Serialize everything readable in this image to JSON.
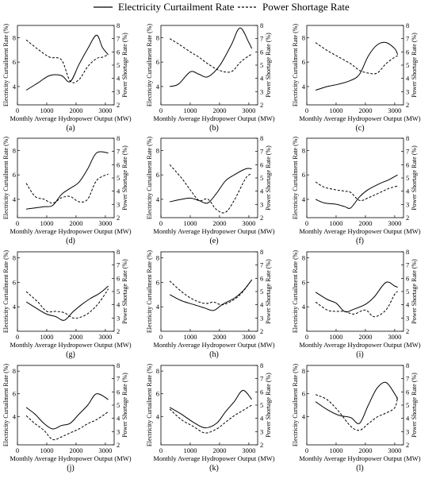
{
  "legend": {
    "series": [
      {
        "name": "Electricity Curtailment Rate",
        "style": "solid"
      },
      {
        "name": "Power Shortage Rate",
        "style": "dashed"
      }
    ]
  },
  "shared_axes": {
    "xlabel": "Monthly Average Hydropower Output (MW)",
    "ylabel_left": "Electricity Curtailment Rate (%)",
    "ylabel_right": "Power Shortage Rate (%)",
    "x_ticks": [
      0,
      1000,
      2000,
      3000
    ],
    "xlim": [
      0,
      3300
    ],
    "line_color": "#000000"
  },
  "chart_data": [
    {
      "type": "line",
      "panel_label": "(a)",
      "left_ticks": [
        4,
        6,
        8
      ],
      "left_ylim": [
        2.5,
        9.0
      ],
      "right_ticks": [
        2,
        3,
        4,
        5,
        6,
        7,
        8
      ],
      "right_ylim": [
        2.0,
        8.0
      ],
      "x": [
        300,
        700,
        1100,
        1500,
        1800,
        2100,
        2400,
        2700,
        2900,
        3100
      ],
      "series": [
        {
          "name": "Electricity Curtailment Rate",
          "values": [
            3.7,
            4.3,
            4.9,
            4.9,
            4.4,
            5.8,
            7.1,
            8.2,
            7.2,
            6.6
          ]
        },
        {
          "name": "Power Shortage Rate",
          "values": [
            6.9,
            6.2,
            5.6,
            5.4,
            3.8,
            3.9,
            4.9,
            5.5,
            5.6,
            5.8
          ]
        }
      ]
    },
    {
      "type": "line",
      "panel_label": "(b)",
      "left_ticks": [
        4,
        6,
        8
      ],
      "left_ylim": [
        2.5,
        9.0
      ],
      "right_ticks": [
        2,
        3,
        4,
        5,
        6,
        7,
        8
      ],
      "right_ylim": [
        2.0,
        8.0
      ],
      "x": [
        300,
        600,
        1000,
        1300,
        1600,
        2000,
        2400,
        2700,
        3000,
        3100
      ],
      "series": [
        {
          "name": "Electricity Curtailment Rate",
          "values": [
            4.0,
            4.2,
            5.2,
            5.0,
            4.8,
            5.7,
            7.4,
            8.8,
            7.6,
            7.1
          ]
        },
        {
          "name": "Power Shortage Rate",
          "values": [
            7.0,
            6.6,
            6.0,
            5.6,
            5.1,
            4.6,
            4.5,
            5.2,
            5.7,
            5.8
          ]
        }
      ]
    },
    {
      "type": "line",
      "panel_label": "(c)",
      "left_ticks": [
        4,
        6,
        8
      ],
      "left_ylim": [
        2.5,
        9.0
      ],
      "right_ticks": [
        2,
        3,
        4,
        5,
        6,
        7,
        8
      ],
      "right_ylim": [
        2.0,
        8.0
      ],
      "x": [
        300,
        700,
        1100,
        1500,
        1800,
        2100,
        2400,
        2700,
        3000,
        3100
      ],
      "series": [
        {
          "name": "Electricity Curtailment Rate",
          "values": [
            3.7,
            4.0,
            4.2,
            4.5,
            5.0,
            6.5,
            7.4,
            7.6,
            7.1,
            6.6
          ]
        },
        {
          "name": "Power Shortage Rate",
          "values": [
            6.7,
            6.1,
            5.6,
            5.1,
            4.6,
            4.4,
            4.4,
            5.1,
            5.6,
            5.7
          ]
        }
      ]
    },
    {
      "type": "line",
      "panel_label": "(d)",
      "left_ticks": [
        4,
        6,
        8
      ],
      "left_ylim": [
        2.5,
        9.0
      ],
      "right_ticks": [
        2,
        3,
        4,
        5,
        6,
        7,
        8
      ],
      "right_ylim": [
        2.0,
        8.0
      ],
      "x": [
        300,
        600,
        900,
        1200,
        1500,
        1800,
        2100,
        2400,
        2700,
        3100
      ],
      "series": [
        {
          "name": "Electricity Curtailment Rate",
          "values": [
            3.2,
            3.3,
            3.4,
            3.5,
            4.4,
            4.9,
            5.4,
            6.5,
            7.8,
            7.8
          ]
        },
        {
          "name": "Power Shortage Rate",
          "values": [
            4.6,
            3.6,
            3.4,
            3.1,
            3.5,
            3.6,
            3.2,
            3.4,
            4.8,
            5.3
          ]
        }
      ]
    },
    {
      "type": "line",
      "panel_label": "(e)",
      "left_ticks": [
        4,
        6,
        8
      ],
      "left_ylim": [
        2.5,
        9.0
      ],
      "right_ticks": [
        2,
        3,
        4,
        5,
        6,
        7,
        8
      ],
      "right_ylim": [
        2.0,
        8.0
      ],
      "x": [
        300,
        700,
        1000,
        1300,
        1600,
        1900,
        2200,
        2500,
        2900,
        3100
      ],
      "series": [
        {
          "name": "Electricity Curtailment Rate",
          "values": [
            3.8,
            4.0,
            4.1,
            3.9,
            3.7,
            4.5,
            5.5,
            6.0,
            6.5,
            6.5
          ]
        },
        {
          "name": "Power Shortage Rate",
          "values": [
            6.0,
            5.0,
            4.1,
            3.3,
            3.4,
            2.6,
            2.4,
            3.3,
            5.0,
            5.3
          ]
        }
      ]
    },
    {
      "type": "line",
      "panel_label": "(f)",
      "left_ticks": [
        4,
        6,
        8
      ],
      "left_ylim": [
        2.5,
        9.0
      ],
      "right_ticks": [
        2,
        3,
        4,
        5,
        6,
        7,
        8
      ],
      "right_ylim": [
        2.0,
        8.0
      ],
      "x": [
        300,
        600,
        1000,
        1300,
        1500,
        1800,
        2100,
        2500,
        2800,
        3100
      ],
      "series": [
        {
          "name": "Electricity Curtailment Rate",
          "values": [
            4.0,
            3.7,
            3.6,
            3.4,
            3.3,
            4.2,
            4.8,
            5.3,
            5.6,
            6.0
          ]
        },
        {
          "name": "Power Shortage Rate",
          "values": [
            4.7,
            4.3,
            4.1,
            4.0,
            3.9,
            3.3,
            3.5,
            3.9,
            4.2,
            4.4
          ]
        }
      ]
    },
    {
      "type": "line",
      "panel_label": "(g)",
      "left_ticks": [
        4,
        6,
        8
      ],
      "left_ylim": [
        2.0,
        8.5
      ],
      "right_ticks": [
        2,
        3,
        4,
        5,
        6,
        7,
        8
      ],
      "right_ylim": [
        2.0,
        8.0
      ],
      "x": [
        300,
        700,
        1000,
        1300,
        1600,
        1900,
        2200,
        2500,
        2800,
        3100
      ],
      "series": [
        {
          "name": "Electricity Curtailment Rate",
          "values": [
            4.4,
            3.8,
            3.4,
            3.2,
            2.9,
            3.6,
            4.2,
            4.7,
            5.1,
            5.7
          ]
        },
        {
          "name": "Power Shortage Rate",
          "values": [
            5.0,
            4.2,
            3.5,
            3.5,
            3.4,
            3.0,
            3.1,
            3.5,
            4.2,
            5.2
          ]
        }
      ]
    },
    {
      "type": "line",
      "panel_label": "(h)",
      "left_ticks": [
        4,
        6,
        8
      ],
      "left_ylim": [
        2.0,
        8.5
      ],
      "right_ticks": [
        2,
        3,
        4,
        5,
        6,
        7,
        8
      ],
      "right_ylim": [
        2.0,
        8.0
      ],
      "x": [
        300,
        700,
        1100,
        1500,
        1800,
        2100,
        2500,
        2800,
        3100
      ],
      "series": [
        {
          "name": "Electricity Curtailment Rate",
          "values": [
            5.0,
            4.5,
            4.2,
            3.9,
            3.7,
            4.2,
            4.7,
            5.3,
            6.2
          ]
        },
        {
          "name": "Power Shortage Rate",
          "values": [
            5.8,
            5.0,
            4.4,
            4.1,
            4.2,
            4.0,
            4.4,
            5.0,
            5.9
          ]
        }
      ]
    },
    {
      "type": "line",
      "panel_label": "(i)",
      "left_ticks": [
        4,
        6,
        8
      ],
      "left_ylim": [
        2.0,
        8.5
      ],
      "right_ticks": [
        2,
        3,
        4,
        5,
        6,
        7,
        8
      ],
      "right_ylim": [
        2.0,
        8.0
      ],
      "x": [
        300,
        700,
        1000,
        1300,
        1600,
        2000,
        2300,
        2700,
        3000,
        3100
      ],
      "series": [
        {
          "name": "Electricity Curtailment Rate",
          "values": [
            5.2,
            4.6,
            4.3,
            3.6,
            3.8,
            4.2,
            4.8,
            6.0,
            5.7,
            5.6
          ]
        },
        {
          "name": "Power Shortage Rate",
          "values": [
            4.2,
            3.6,
            3.5,
            3.5,
            3.3,
            3.6,
            3.1,
            3.6,
            4.8,
            5.0
          ]
        }
      ]
    },
    {
      "type": "line",
      "panel_label": "(j)",
      "left_ticks": [
        4,
        6,
        8
      ],
      "left_ylim": [
        1.5,
        8.5
      ],
      "right_ticks": [
        2,
        3,
        4,
        5,
        6,
        7,
        8
      ],
      "right_ylim": [
        2.0,
        8.0
      ],
      "x": [
        300,
        600,
        900,
        1200,
        1500,
        1800,
        2100,
        2400,
        2700,
        3100
      ],
      "series": [
        {
          "name": "Electricity Curtailment Rate",
          "values": [
            4.8,
            4.2,
            3.4,
            2.9,
            3.2,
            3.4,
            4.2,
            5.0,
            6.0,
            5.5
          ]
        },
        {
          "name": "Power Shortage Rate",
          "values": [
            4.2,
            3.6,
            3.1,
            2.4,
            2.6,
            2.9,
            3.2,
            3.6,
            3.9,
            4.5
          ]
        }
      ]
    },
    {
      "type": "line",
      "panel_label": "(k)",
      "left_ticks": [
        4,
        6,
        8
      ],
      "left_ylim": [
        1.5,
        8.5
      ],
      "right_ticks": [
        2,
        3,
        4,
        5,
        6,
        7,
        8
      ],
      "right_ylim": [
        2.0,
        8.0
      ],
      "x": [
        300,
        700,
        1100,
        1500,
        1900,
        2200,
        2500,
        2800,
        3100
      ],
      "series": [
        {
          "name": "Electricity Curtailment Rate",
          "values": [
            4.8,
            4.2,
            3.5,
            3.0,
            3.4,
            4.4,
            5.3,
            6.3,
            5.5
          ]
        },
        {
          "name": "Power Shortage Rate",
          "values": [
            4.7,
            3.9,
            3.4,
            2.9,
            3.2,
            3.7,
            4.2,
            4.6,
            5.0
          ]
        }
      ]
    },
    {
      "type": "line",
      "panel_label": "(l)",
      "left_ticks": [
        4,
        6,
        8
      ],
      "left_ylim": [
        1.5,
        8.5
      ],
      "right_ticks": [
        2,
        3,
        4,
        5,
        6,
        7,
        8
      ],
      "right_ylim": [
        2.0,
        8.0
      ],
      "x": [
        300,
        700,
        1100,
        1500,
        1800,
        2100,
        2400,
        2700,
        3000,
        3100
      ],
      "series": [
        {
          "name": "Electricity Curtailment Rate",
          "values": [
            5.3,
            4.6,
            4.1,
            3.9,
            3.4,
            5.0,
            6.5,
            7.0,
            6.0,
            5.5
          ]
        },
        {
          "name": "Power Shortage Rate",
          "values": [
            5.8,
            5.4,
            4.5,
            3.4,
            3.1,
            3.6,
            4.1,
            4.4,
            4.8,
            5.6
          ]
        }
      ]
    }
  ]
}
